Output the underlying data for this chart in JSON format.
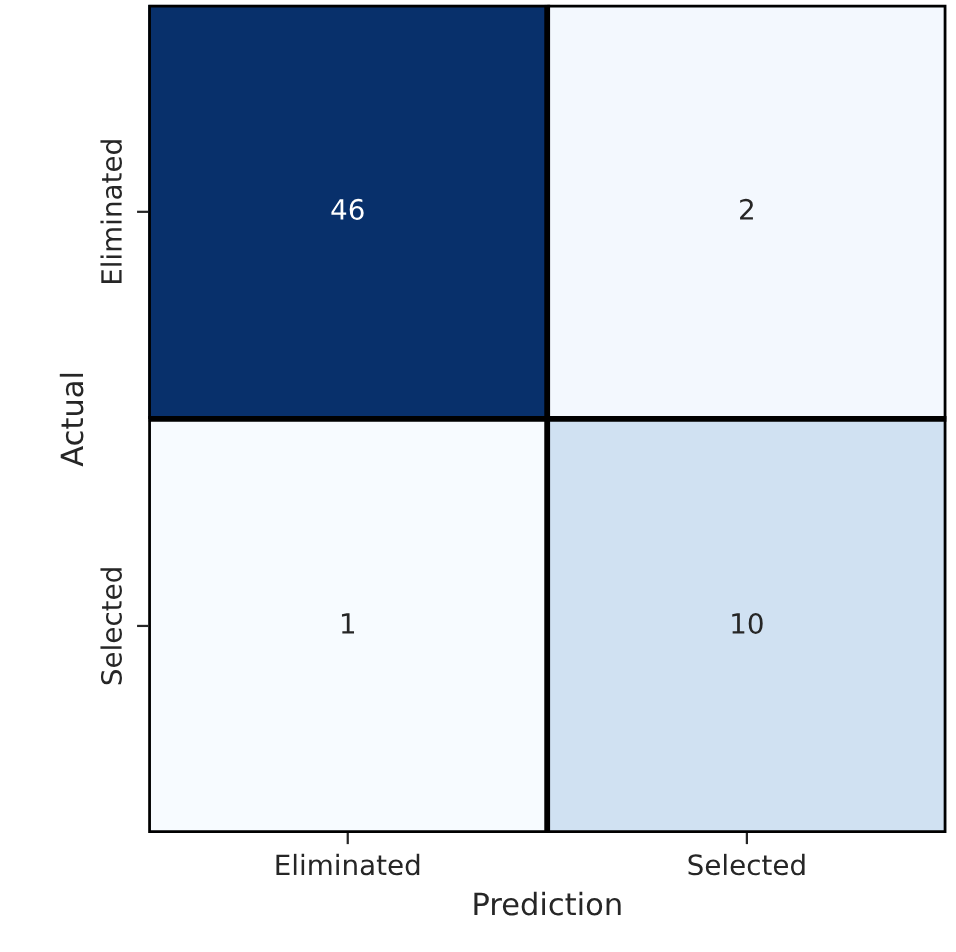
{
  "chart_data": {
    "type": "heatmap",
    "categories": [
      "Eliminated",
      "Selected"
    ],
    "y_categories": [
      "Eliminated",
      "Selected"
    ],
    "cells": [
      [
        46,
        2
      ],
      [
        1,
        10
      ]
    ],
    "xlabel": "Prediction",
    "ylabel": "Actual",
    "data_labels": true
  }
}
